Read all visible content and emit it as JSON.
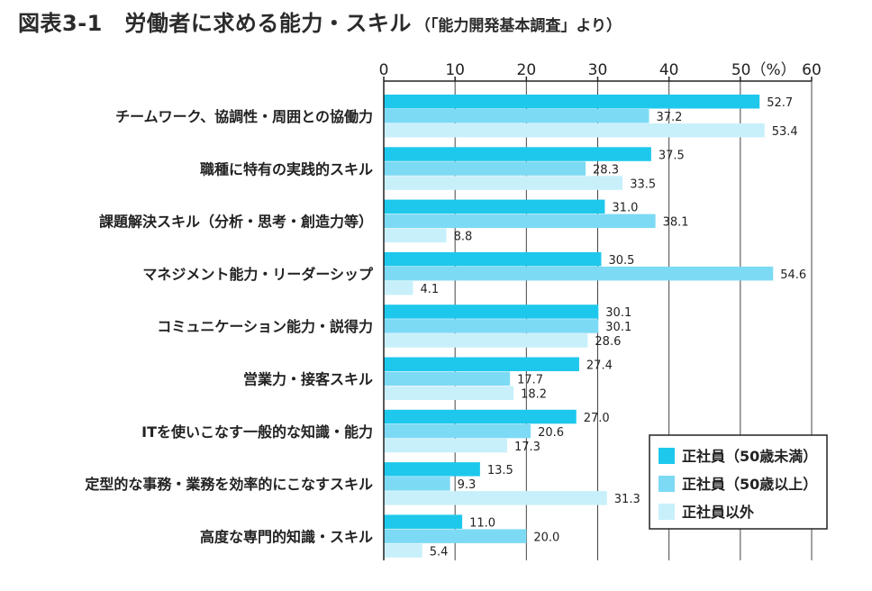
{
  "title": {
    "main": "図表3-1　労働者に求める能力・スキル",
    "sub": "（「能力開発基本調査」より）"
  },
  "chart_data": {
    "type": "bar",
    "orientation": "horizontal",
    "categories": [
      "チームワーク、協調性・周囲との協働力",
      "職種に特有の実践的スキル",
      "課題解決スキル（分析・思考・創造力等）",
      "マネジメント能力・リーダーシップ",
      "コミュニケーション能力・説得力",
      "営業力・接客スキル",
      "ITを使いこなす一般的な知識・能力",
      "定型的な事務・業務を効率的にこなすスキル",
      "高度な専門的知識・スキル"
    ],
    "series": [
      {
        "name": "正社員（50歳未満）",
        "color": "#1ec8ec",
        "values": [
          52.7,
          37.5,
          31.0,
          30.5,
          30.1,
          27.4,
          27.0,
          13.5,
          11.0
        ],
        "labels": [
          "52.7",
          "37.5",
          "31.0",
          "30.5",
          "30.1",
          "27.4",
          "27.0",
          "13.5",
          "11.0"
        ]
      },
      {
        "name": "正社員（50歳以上）",
        "color": "#7ddaf4",
        "values": [
          37.2,
          28.3,
          38.1,
          54.6,
          30.1,
          17.7,
          20.6,
          9.3,
          20.0
        ],
        "labels": [
          "37.2",
          "28.3",
          "38.1",
          "54.6",
          "30.1",
          "17.7",
          "20.6",
          "9.3",
          "20.0"
        ]
      },
      {
        "name": "正社員以外",
        "color": "#c8f0fb",
        "values": [
          53.4,
          33.5,
          8.8,
          4.1,
          28.6,
          18.2,
          17.3,
          31.3,
          5.4
        ],
        "labels": [
          "53.4",
          "33.5",
          "8.8",
          "4.1",
          "28.6",
          "18.2",
          "17.3",
          "31.3",
          "5.4"
        ]
      }
    ],
    "xlim": [
      0,
      60
    ],
    "ticks": [
      "0",
      "10",
      "20",
      "30",
      "40",
      "50（%）",
      "60"
    ],
    "grid": true,
    "legend_position": "bottom-right"
  }
}
